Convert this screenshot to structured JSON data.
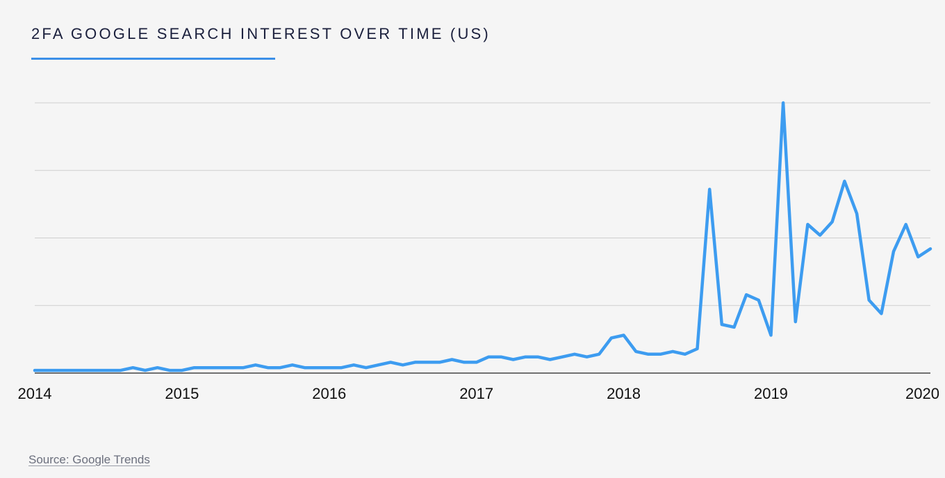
{
  "title": "2FA GOOGLE SEARCH INTEREST OVER TIME (US)",
  "source": "Source: Google Trends",
  "colors": {
    "line": "#3d9cf0",
    "accent": "#3b8fe8",
    "grid": "#cfcfcf",
    "axis": "#222222",
    "text": "#1a1f3c"
  },
  "chart_data": {
    "type": "line",
    "title": "2FA GOOGLE SEARCH INTEREST OVER TIME (US)",
    "xlabel": "",
    "ylabel": "",
    "x_ticks": [
      "2014",
      "2015",
      "2016",
      "2017",
      "2018",
      "2019",
      "2020"
    ],
    "xlim": [
      "2014-01",
      "2020-02"
    ],
    "ylim": [
      0,
      100
    ],
    "y_gridlines": [
      25,
      50,
      75,
      100
    ],
    "grid": true,
    "legend": "none",
    "series": [
      {
        "x": [
          "2014-01",
          "2014-02",
          "2014-03",
          "2014-04",
          "2014-05",
          "2014-06",
          "2014-07",
          "2014-08",
          "2014-09",
          "2014-10",
          "2014-11",
          "2014-12",
          "2015-01",
          "2015-02",
          "2015-03",
          "2015-04",
          "2015-05",
          "2015-06",
          "2015-07",
          "2015-08",
          "2015-09",
          "2015-10",
          "2015-11",
          "2015-12",
          "2016-01",
          "2016-02",
          "2016-03",
          "2016-04",
          "2016-05",
          "2016-06",
          "2016-07",
          "2016-08",
          "2016-09",
          "2016-10",
          "2016-11",
          "2016-12",
          "2017-01",
          "2017-02",
          "2017-03",
          "2017-04",
          "2017-05",
          "2017-06",
          "2017-07",
          "2017-08",
          "2017-09",
          "2017-10",
          "2017-11",
          "2017-12",
          "2018-01",
          "2018-02",
          "2018-03",
          "2018-04",
          "2018-05",
          "2018-06",
          "2018-07",
          "2018-08",
          "2018-09",
          "2018-10",
          "2018-11",
          "2018-12",
          "2019-01",
          "2019-02",
          "2019-03",
          "2019-04",
          "2019-05",
          "2019-06",
          "2019-07",
          "2019-08",
          "2019-09",
          "2019-10",
          "2019-11",
          "2019-12",
          "2020-01",
          "2020-02"
        ],
        "values": [
          1,
          1,
          1,
          1,
          1,
          1,
          1,
          1,
          2,
          1,
          2,
          1,
          1,
          2,
          2,
          2,
          2,
          2,
          3,
          2,
          2,
          3,
          2,
          2,
          2,
          2,
          3,
          2,
          3,
          4,
          3,
          4,
          4,
          4,
          5,
          4,
          4,
          6,
          6,
          5,
          6,
          6,
          5,
          6,
          7,
          6,
          7,
          13,
          14,
          8,
          7,
          7,
          8,
          7,
          9,
          68,
          18,
          17,
          29,
          27,
          14,
          100,
          19,
          55,
          51,
          56,
          71,
          59,
          27,
          22,
          45,
          55,
          43,
          46
        ]
      }
    ]
  }
}
